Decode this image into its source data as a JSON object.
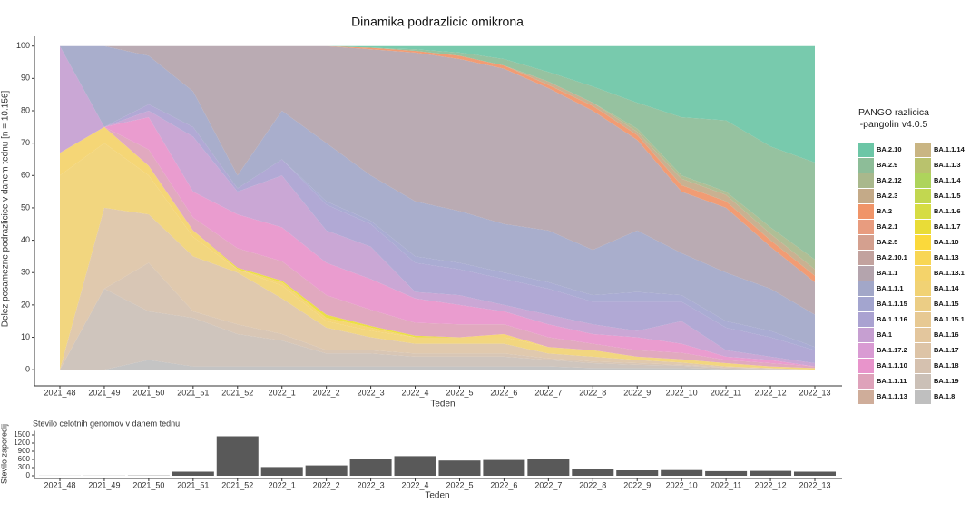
{
  "chart_data": [
    {
      "type": "area",
      "title": "Dinamika podrazlicic omikrona",
      "x_label": "Teden",
      "y_label": "Delez posamezne podrazlicice v danem tednu [n = 10.156]",
      "legend_title": "PANGO razlicica\n-pangolin v4.0.5",
      "categories": [
        "2021_48",
        "2021_49",
        "2021_50",
        "2021_51",
        "2021_52",
        "2022_1",
        "2022_2",
        "2022_3",
        "2022_4",
        "2022_5",
        "2022_6",
        "2022_7",
        "2022_8",
        "2022_9",
        "2022_10",
        "2022_11",
        "2022_12",
        "2022_13"
      ],
      "ylim": [
        -5,
        103
      ],
      "yticks": [
        0,
        10,
        20,
        30,
        40,
        50,
        60,
        70,
        80,
        90,
        100
      ],
      "grid": false,
      "legend": "right",
      "series": [
        {
          "name": "BA.2.10",
          "color": "#6cc6a6",
          "values": [
            0,
            0,
            0,
            0,
            0,
            0,
            0,
            0.5,
            1,
            2,
            4,
            8,
            12.5,
            17.5,
            22,
            23,
            31,
            36
          ]
        },
        {
          "name": "BA.2.9",
          "color": "#8dbd98",
          "values": [
            0,
            0,
            0,
            0,
            0,
            0,
            0,
            0,
            0.5,
            1,
            2,
            3,
            5,
            8,
            18,
            22,
            25,
            30
          ]
        },
        {
          "name": "BA.2.12",
          "color": "#a9b88c",
          "values": [
            0,
            0,
            0,
            0,
            0,
            0,
            0,
            0,
            0,
            0,
            0,
            0,
            0,
            1,
            1,
            1,
            2,
            3
          ]
        },
        {
          "name": "BA.2.3",
          "color": "#c4aa88",
          "values": [
            0,
            0,
            0,
            0,
            0,
            0,
            0,
            0,
            0,
            0,
            0,
            1,
            1,
            1,
            2,
            2,
            2,
            2
          ]
        },
        {
          "name": "BA.2",
          "color": "#f09468",
          "values": [
            0,
            0,
            0,
            0,
            0,
            0,
            0,
            0.5,
            0.5,
            1,
            1,
            1,
            1.5,
            1.5,
            2,
            2,
            2,
            2
          ]
        },
        {
          "name": "BA.2.1",
          "color": "#e89c7f",
          "values": [
            0,
            0,
            0,
            0,
            0,
            0,
            0,
            0,
            0,
            0,
            0,
            0,
            0,
            0,
            0,
            0,
            0,
            0
          ]
        },
        {
          "name": "BA.2.5",
          "color": "#d4a08f",
          "values": [
            0,
            0,
            0,
            0,
            0,
            0,
            0,
            0,
            0,
            0,
            0,
            0,
            0,
            0,
            0,
            0,
            0,
            0
          ]
        },
        {
          "name": "BA.2.10.1",
          "color": "#c2a29e",
          "values": [
            0,
            0,
            0,
            0,
            0,
            0,
            0,
            0,
            0,
            0,
            0,
            0,
            0,
            0,
            0,
            0,
            0,
            0
          ]
        },
        {
          "name": "BA.1.1",
          "color": "#b4a4ad",
          "values": [
            0,
            0,
            3,
            14,
            40,
            20,
            30,
            39,
            46,
            47,
            48,
            44,
            43,
            28,
            19,
            20,
            13,
            10
          ]
        },
        {
          "name": "BA.1.1.1",
          "color": "#a2a7c8",
          "values": [
            0,
            25,
            15,
            11,
            4,
            15,
            18,
            14,
            17,
            16,
            15,
            16,
            14,
            19,
            13,
            15,
            13,
            10
          ]
        },
        {
          "name": "BA.1.1.15",
          "color": "#a3a5cf",
          "values": [
            0,
            0,
            0,
            0,
            0,
            0,
            1,
            1,
            2,
            2,
            2,
            2,
            2,
            3,
            2,
            2,
            2,
            1
          ]
        },
        {
          "name": "BA.1.1.16",
          "color": "#aaa2d1",
          "values": [
            0,
            0,
            2,
            3,
            1,
            5,
            8,
            7,
            9,
            8,
            8,
            8,
            7,
            9,
            6,
            7,
            6,
            4
          ]
        },
        {
          "name": "BA.1",
          "color": "#c69fd1",
          "values": [
            33,
            0,
            2,
            17,
            7,
            16,
            10,
            10,
            2,
            3,
            2,
            3,
            3,
            2,
            7,
            2,
            1,
            1
          ]
        },
        {
          "name": "BA.1.17.2",
          "color": "#d99bd3",
          "values": [
            0,
            0,
            0,
            0,
            0,
            0,
            0,
            0,
            0,
            0,
            0,
            0,
            0,
            0,
            0,
            0,
            0,
            0
          ]
        },
        {
          "name": "BA.1.1.10",
          "color": "#e894cb",
          "values": [
            0,
            0,
            10,
            8,
            10.5,
            10.5,
            10,
            9.5,
            7.5,
            6,
            4,
            4,
            3,
            4,
            2.8,
            1,
            1,
            0
          ]
        },
        {
          "name": "BA.1.1.11",
          "color": "#dea2ba",
          "values": [
            0,
            0,
            5,
            4,
            6,
            6,
            6,
            5,
            4,
            4,
            3,
            3,
            2,
            2,
            2,
            1,
            1,
            0.5
          ]
        },
        {
          "name": "BA.1.1.13",
          "color": "#cfad9a",
          "values": [
            0,
            0,
            0,
            0,
            0,
            0,
            0,
            0,
            0,
            0,
            0,
            0,
            0,
            0,
            0,
            0,
            0,
            0
          ]
        },
        {
          "name": "BA.1.1.14",
          "color": "#c9b583",
          "values": [
            0,
            0,
            0,
            0,
            0,
            0,
            0,
            0,
            0,
            0,
            0,
            0,
            0,
            0,
            0,
            0,
            0,
            0
          ]
        },
        {
          "name": "BA.1.1.3",
          "color": "#b9c26d",
          "values": [
            0,
            0,
            0,
            0,
            0,
            0,
            0,
            0,
            0,
            0,
            0,
            0,
            0,
            0,
            0,
            0,
            0,
            0
          ]
        },
        {
          "name": "BA.1.1.4",
          "color": "#aed45c",
          "values": [
            0,
            0,
            0,
            0,
            0,
            0,
            0,
            0,
            0,
            0,
            0,
            0,
            0,
            0,
            0,
            0,
            0,
            0
          ]
        },
        {
          "name": "BA.1.1.5",
          "color": "#c2d750",
          "values": [
            0,
            0,
            0,
            0,
            0,
            0,
            0,
            0,
            0,
            0,
            0,
            0,
            0,
            0,
            0,
            0,
            0,
            0
          ]
        },
        {
          "name": "BA.1.1.6",
          "color": "#d6dc43",
          "values": [
            0,
            0,
            0,
            0,
            0,
            0,
            0,
            0,
            0,
            0,
            0,
            0,
            0,
            0,
            0,
            0,
            0,
            0
          ]
        },
        {
          "name": "BA.1.1.7",
          "color": "#e9dc37",
          "values": [
            0,
            0,
            0,
            0,
            0.5,
            0.5,
            1,
            0.5,
            0.5,
            0,
            0,
            0,
            0,
            0,
            0,
            0,
            0,
            0
          ]
        },
        {
          "name": "BA.1.10",
          "color": "#fbd93b",
          "values": [
            0,
            0,
            0,
            0,
            0,
            0,
            0,
            0,
            0,
            0,
            0,
            0,
            0,
            0,
            0,
            0,
            0,
            0
          ]
        },
        {
          "name": "BA.1.13",
          "color": "#f8d654",
          "values": [
            0,
            0,
            0,
            0,
            0,
            0,
            0,
            0,
            0,
            0,
            0,
            0,
            0,
            0,
            0,
            0,
            0,
            0
          ]
        },
        {
          "name": "BA.1.13.1",
          "color": "#f4d36a",
          "values": [
            7,
            5,
            3,
            2,
            0,
            1,
            1,
            1,
            0,
            0,
            1,
            0,
            0,
            0,
            0,
            0,
            0,
            0
          ]
        },
        {
          "name": "BA.1.14",
          "color": "#f1d274",
          "values": [
            60,
            20,
            12,
            6,
            1,
            4,
            2,
            2,
            2,
            2,
            2,
            2,
            2,
            1,
            1,
            1,
            0.5,
            0.5
          ]
        },
        {
          "name": "BA.1.15",
          "color": "#ebcd85",
          "values": [
            0,
            0,
            0,
            0,
            0,
            0,
            0,
            0,
            0,
            0,
            0,
            0,
            0,
            0,
            0,
            0,
            0,
            0
          ]
        },
        {
          "name": "BA.1.15.1",
          "color": "#e7c993",
          "values": [
            0,
            0,
            0,
            0,
            0,
            0,
            0,
            0,
            0,
            0,
            0,
            0,
            0,
            0,
            0,
            0,
            0,
            0
          ]
        },
        {
          "name": "BA.1.16",
          "color": "#e3c69d",
          "values": [
            0,
            0,
            0,
            0,
            0,
            0,
            0,
            0,
            0,
            0,
            0,
            0,
            0,
            0,
            0,
            0,
            0,
            0
          ]
        },
        {
          "name": "BA.1.17",
          "color": "#ddc4a7",
          "values": [
            0,
            25,
            15,
            17,
            16,
            11,
            7,
            4,
            3,
            3,
            3,
            1.5,
            1.5,
            1,
            0.7,
            0.3,
            0.1,
            0
          ]
        },
        {
          "name": "BA.1.18",
          "color": "#d5c1af",
          "values": [
            0,
            0,
            15,
            2,
            3,
            2,
            1,
            1,
            1,
            1,
            1,
            0.5,
            0.5,
            0.5,
            0.3,
            0.2,
            0.1,
            0
          ]
        },
        {
          "name": "BA.1.19",
          "color": "#cbc0b7",
          "values": [
            0,
            25,
            15,
            15,
            10,
            8,
            4,
            4,
            3,
            3,
            3,
            2,
            1.5,
            1,
            0.7,
            0.3,
            0.2,
            0
          ]
        },
        {
          "name": "BA.1.8",
          "color": "#bfbfbf",
          "values": [
            0,
            0,
            3,
            1,
            1,
            1,
            1,
            1,
            1,
            1,
            1,
            1,
            0.5,
            0.5,
            0.5,
            0.2,
            0.1,
            0
          ]
        }
      ]
    },
    {
      "type": "bar",
      "title": "Stevilo celotnih genomov v danem tednu",
      "x_label": "Teden",
      "y_label": "Stevilo zaporedij",
      "categories": [
        "2021_48",
        "2021_49",
        "2021_50",
        "2021_51",
        "2021_52",
        "2022_1",
        "2022_2",
        "2022_3",
        "2022_4",
        "2022_5",
        "2022_6",
        "2022_7",
        "2022_8",
        "2022_9",
        "2022_10",
        "2022_11",
        "2022_12",
        "2022_13"
      ],
      "values": [
        3,
        4,
        8,
        150,
        1450,
        320,
        380,
        620,
        720,
        560,
        580,
        620,
        250,
        200,
        210,
        170,
        180,
        150
      ],
      "color": "#595959",
      "ylim": [
        -100,
        1650
      ],
      "yticks": [
        0,
        300,
        600,
        900,
        1200,
        1500
      ],
      "grid": false
    }
  ]
}
